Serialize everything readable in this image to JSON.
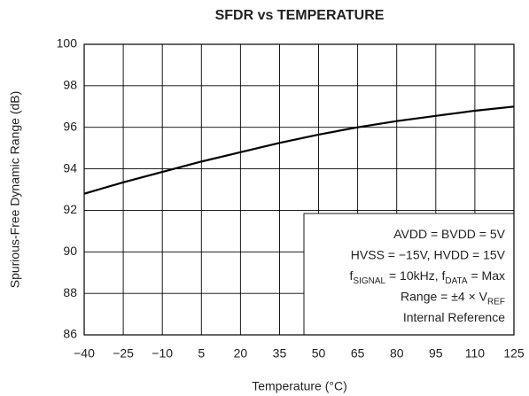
{
  "chart_data": {
    "type": "line",
    "title": "SFDR vs TEMPERATURE",
    "x_label": "Temperature (°C)",
    "y_label": "Spurious-Free Dynamic Range (dB)",
    "x": [
      -40,
      -25,
      -10,
      5,
      20,
      35,
      50,
      65,
      80,
      95,
      110,
      125
    ],
    "series": [
      {
        "name": "SFDR",
        "color": "#000000",
        "values": [
          92.8,
          93.35,
          93.85,
          94.35,
          94.8,
          95.25,
          95.65,
          96.0,
          96.3,
          96.55,
          96.8,
          97.0
        ]
      }
    ],
    "xlim": [
      -40,
      125
    ],
    "xticks": [
      {
        "value": -40,
        "label": "−40"
      },
      {
        "value": -25,
        "label": "−25"
      },
      {
        "value": -10,
        "label": "−10"
      },
      5,
      20,
      35,
      50,
      65,
      80,
      95,
      110,
      125
    ],
    "ylim": [
      86,
      100
    ],
    "yticks": [
      86,
      88,
      90,
      92,
      94,
      96,
      98,
      100
    ],
    "grid": true,
    "annotation": [
      [
        {
          "text": "AVDD = BVDD = 5V"
        }
      ],
      [
        {
          "text": "HVSS = −15V, HVDD = 15V"
        }
      ],
      [
        {
          "text": "f"
        },
        {
          "sub": "SIGNAL"
        },
        {
          "text": " = 10kHz, f"
        },
        {
          "sub": "DATA"
        },
        {
          "text": " = Max"
        }
      ],
      [
        {
          "text": "Range = ±4 × V"
        },
        {
          "sub": "REF"
        }
      ],
      [
        {
          "text": "Internal Reference"
        }
      ]
    ]
  }
}
